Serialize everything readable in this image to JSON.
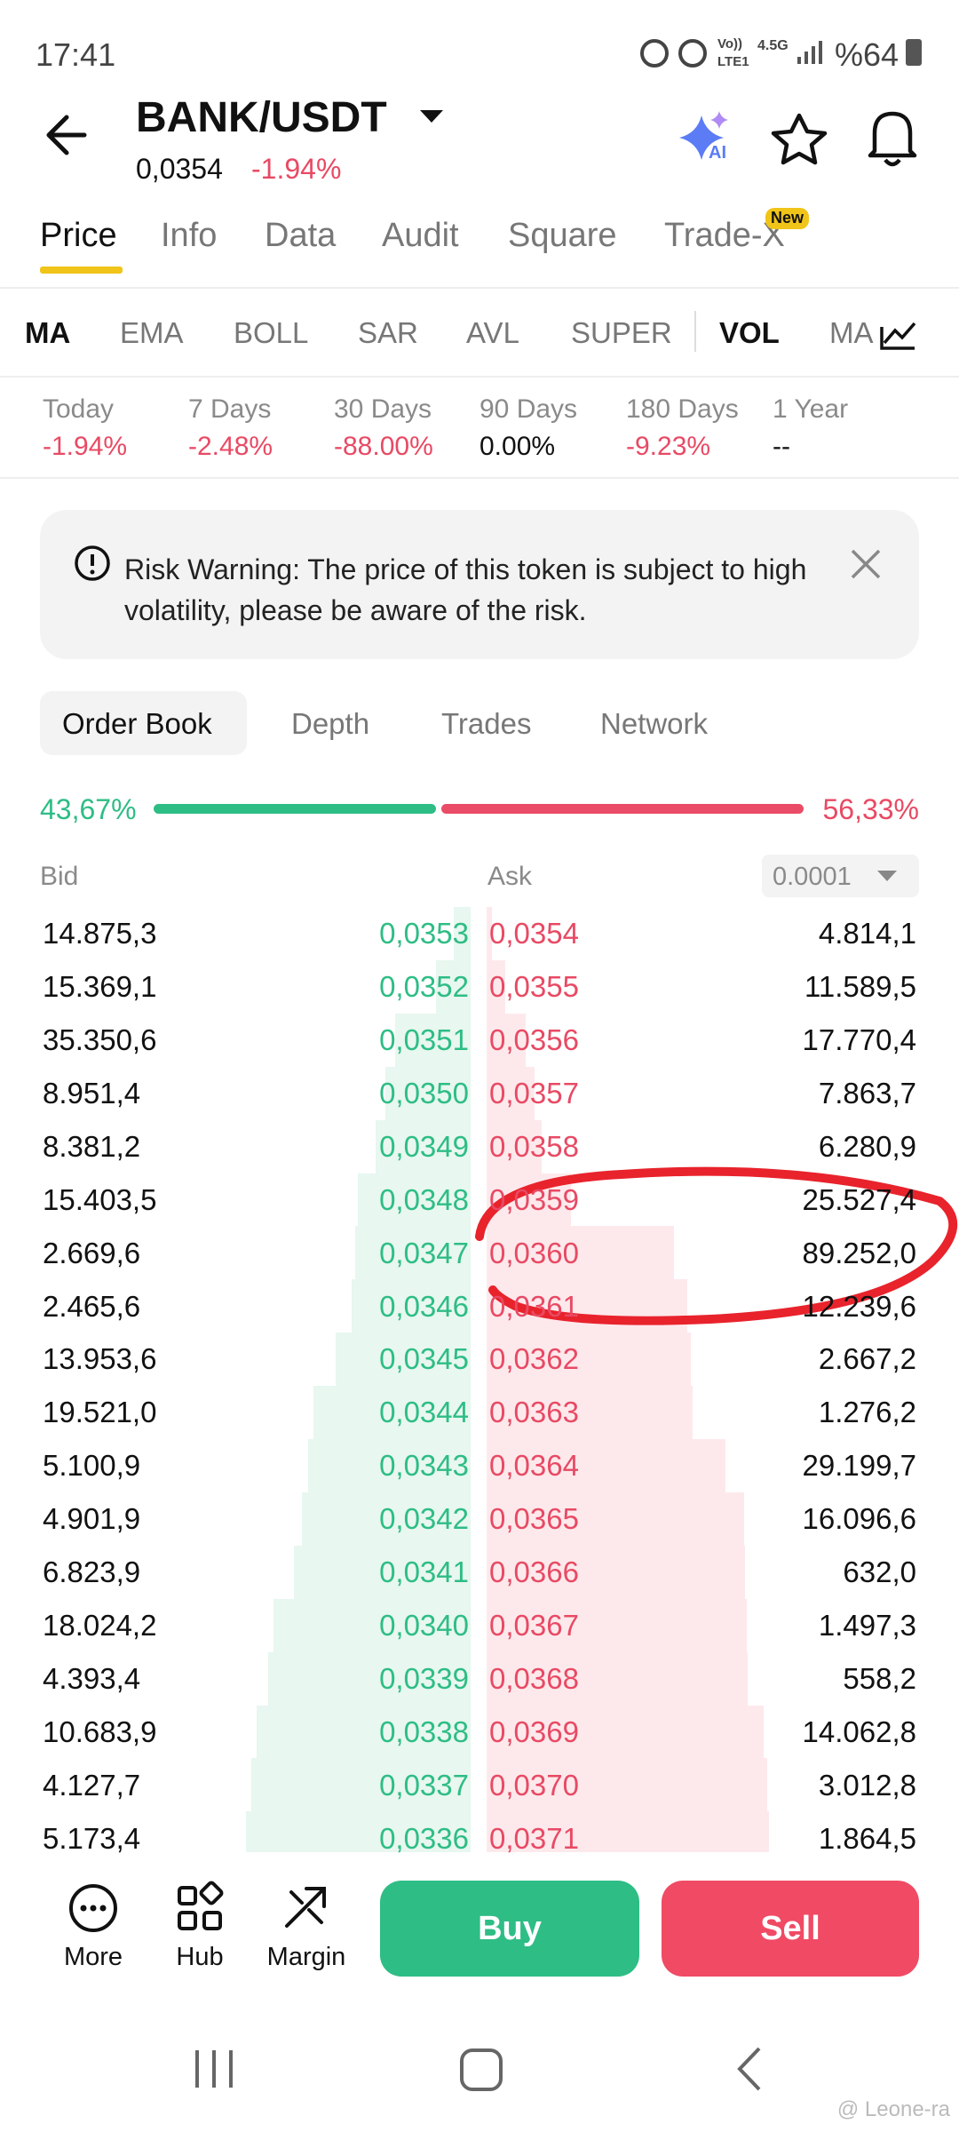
{
  "status_bar": {
    "time": "17:41",
    "volte": "Vo))",
    "lte": "LTE1",
    "network": "4.5G",
    "battery": "%64"
  },
  "header": {
    "pair": "BANK/USDT",
    "price": "0,0354",
    "change": "-1.94%",
    "ai_badge": "AI"
  },
  "tabs": [
    "Price",
    "Info",
    "Data",
    "Audit",
    "Square",
    "Trade-X"
  ],
  "tabs_badge": "New",
  "indicators": [
    "MA",
    "EMA",
    "BOLL",
    "SAR",
    "AVL",
    "SUPER",
    "VOL",
    "MA"
  ],
  "periods": [
    {
      "label": "Today",
      "value": "-1.94%"
    },
    {
      "label": "7 Days",
      "value": "-2.48%"
    },
    {
      "label": "30 Days",
      "value": "-88.00%"
    },
    {
      "label": "90 Days",
      "value": "0.00%"
    },
    {
      "label": "180 Days",
      "value": "-9.23%"
    },
    {
      "label": "1 Year",
      "value": "--"
    }
  ],
  "risk_warning": "Risk Warning: The price of this token is subject to high volatility, please be aware of the risk.",
  "book_tabs": [
    "Order Book",
    "Depth",
    "Trades",
    "Network"
  ],
  "ratio": {
    "bid": "43,67%",
    "ask": "56,33%"
  },
  "order_book": {
    "bid_header": "Bid",
    "ask_header": "Ask",
    "precision": "0.0001",
    "rows": [
      {
        "bid_amount": "14.875,3",
        "bid_price": "0,0353",
        "ask_price": "0,0354",
        "ask_amount": "4.814,1"
      },
      {
        "bid_amount": "15.369,1",
        "bid_price": "0,0352",
        "ask_price": "0,0355",
        "ask_amount": "11.589,5"
      },
      {
        "bid_amount": "35.350,6",
        "bid_price": "0,0351",
        "ask_price": "0,0356",
        "ask_amount": "17.770,4"
      },
      {
        "bid_amount": "8.951,4",
        "bid_price": "0,0350",
        "ask_price": "0,0357",
        "ask_amount": "7.863,7"
      },
      {
        "bid_amount": "8.381,2",
        "bid_price": "0,0349",
        "ask_price": "0,0358",
        "ask_amount": "6.280,9"
      },
      {
        "bid_amount": "15.403,5",
        "bid_price": "0,0348",
        "ask_price": "0,0359",
        "ask_amount": "25.527,4"
      },
      {
        "bid_amount": "2.669,6",
        "bid_price": "0,0347",
        "ask_price": "0,0360",
        "ask_amount": "89.252,0"
      },
      {
        "bid_amount": "2.465,6",
        "bid_price": "0,0346",
        "ask_price": "0,0361",
        "ask_amount": "12.239,6"
      },
      {
        "bid_amount": "13.953,6",
        "bid_price": "0,0345",
        "ask_price": "0,0362",
        "ask_amount": "2.667,2"
      },
      {
        "bid_amount": "19.521,0",
        "bid_price": "0,0344",
        "ask_price": "0,0363",
        "ask_amount": "1.276,2"
      },
      {
        "bid_amount": "5.100,9",
        "bid_price": "0,0343",
        "ask_price": "0,0364",
        "ask_amount": "29.199,7"
      },
      {
        "bid_amount": "4.901,9",
        "bid_price": "0,0342",
        "ask_price": "0,0365",
        "ask_amount": "16.096,6"
      },
      {
        "bid_amount": "6.823,9",
        "bid_price": "0,0341",
        "ask_price": "0,0366",
        "ask_amount": "632,0"
      },
      {
        "bid_amount": "18.024,2",
        "bid_price": "0,0340",
        "ask_price": "0,0367",
        "ask_amount": "1.497,3"
      },
      {
        "bid_amount": "4.393,4",
        "bid_price": "0,0339",
        "ask_price": "0,0368",
        "ask_amount": "558,2"
      },
      {
        "bid_amount": "10.683,9",
        "bid_price": "0,0338",
        "ask_price": "0,0369",
        "ask_amount": "14.062,8"
      },
      {
        "bid_amount": "4.127,7",
        "bid_price": "0,0337",
        "ask_price": "0,0370",
        "ask_amount": "3.012,8"
      },
      {
        "bid_amount": "5.173,4",
        "bid_price": "0,0336",
        "ask_price": "0,0371",
        "ask_amount": "1.864,5"
      }
    ]
  },
  "bottom_bar": {
    "more": "More",
    "hub": "Hub",
    "margin": "Margin",
    "buy": "Buy",
    "sell": "Sell"
  },
  "watermark": "@ Leone-ra"
}
